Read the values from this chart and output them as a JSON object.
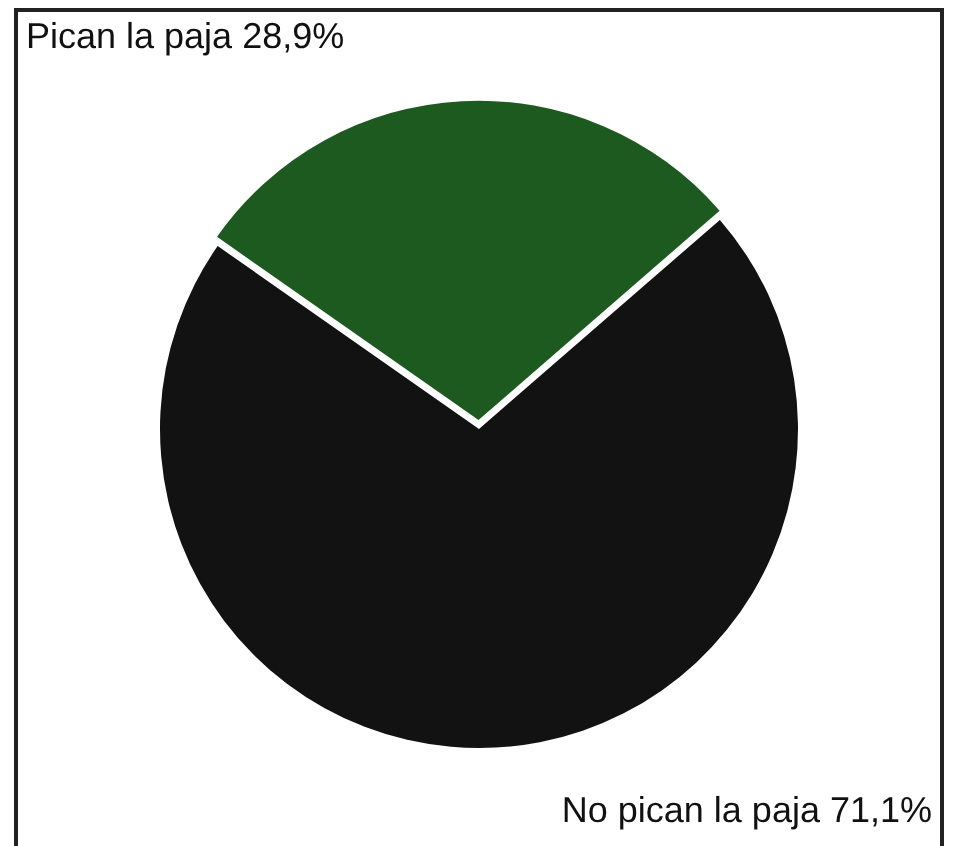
{
  "chart_data": {
    "type": "pie",
    "categories": [
      "Pican la paja",
      "No pican la paja"
    ],
    "values": [
      28.9,
      71.1
    ],
    "colors": [
      "#1d5a1f",
      "#121212"
    ],
    "value_labels": [
      "28,9%",
      "71,1%"
    ],
    "legend": false
  }
}
